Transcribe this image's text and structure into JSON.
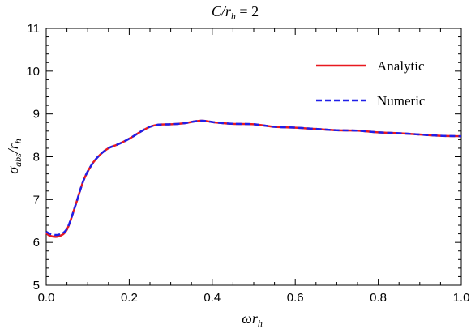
{
  "chart_data": {
    "type": "line",
    "title": "C/r_h = 2",
    "xlabel": "ωr_h",
    "ylabel": "σ_abs/r_h",
    "xlim": [
      0.0,
      1.0
    ],
    "ylim": [
      5,
      11
    ],
    "xticks": [
      "0.0",
      "0.2",
      "0.4",
      "0.6",
      "0.8",
      "1.0"
    ],
    "yticks": [
      "5",
      "6",
      "7",
      "8",
      "9",
      "10",
      "11"
    ],
    "legend_position": "top-right",
    "series": [
      {
        "name": "Analytic",
        "color": "#e8191f",
        "style": "solid",
        "x": [
          0.0,
          0.01,
          0.03,
          0.05,
          0.07,
          0.09,
          0.11,
          0.13,
          0.15,
          0.17,
          0.19,
          0.21,
          0.23,
          0.25,
          0.27,
          0.3,
          0.33,
          0.36,
          0.38,
          0.41,
          0.45,
          0.5,
          0.55,
          0.6,
          0.65,
          0.7,
          0.75,
          0.8,
          0.85,
          0.9,
          0.95,
          1.0
        ],
        "y": [
          6.22,
          6.15,
          6.14,
          6.3,
          6.85,
          7.45,
          7.82,
          8.05,
          8.2,
          8.28,
          8.37,
          8.48,
          8.6,
          8.7,
          8.75,
          8.76,
          8.78,
          8.83,
          8.84,
          8.8,
          8.77,
          8.76,
          8.7,
          8.68,
          8.65,
          8.62,
          8.61,
          8.57,
          8.55,
          8.52,
          8.49,
          8.48
        ]
      },
      {
        "name": "Numeric",
        "color": "#1f1fe8",
        "style": "dashed",
        "x": [
          0.0,
          0.01,
          0.03,
          0.05,
          0.07,
          0.09,
          0.11,
          0.13,
          0.15,
          0.17,
          0.19,
          0.21,
          0.23,
          0.25,
          0.27,
          0.3,
          0.33,
          0.36,
          0.38,
          0.41,
          0.45,
          0.5,
          0.55,
          0.6,
          0.65,
          0.7,
          0.75,
          0.8,
          0.85,
          0.9,
          0.95,
          1.0
        ],
        "y": [
          6.25,
          6.2,
          6.18,
          6.32,
          6.85,
          7.45,
          7.82,
          8.05,
          8.2,
          8.28,
          8.37,
          8.48,
          8.6,
          8.7,
          8.75,
          8.76,
          8.78,
          8.83,
          8.84,
          8.8,
          8.77,
          8.76,
          8.7,
          8.68,
          8.65,
          8.62,
          8.61,
          8.57,
          8.55,
          8.52,
          8.49,
          8.48
        ]
      }
    ]
  }
}
